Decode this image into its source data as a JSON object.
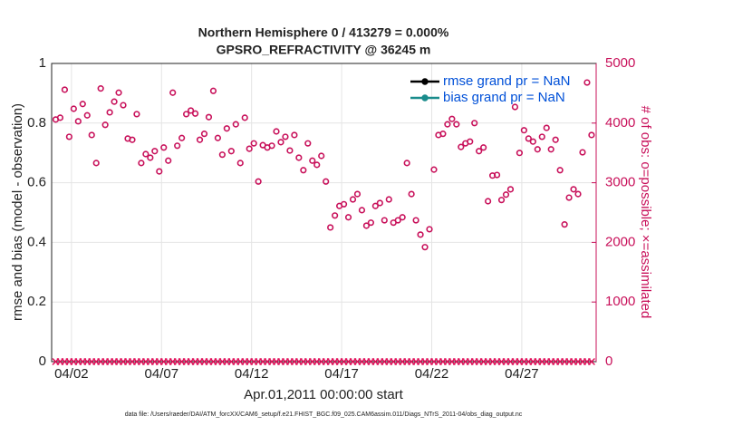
{
  "chart_data": {
    "type": "scatter",
    "title": [
      "Northern Hemisphere 0 / 413279 = 0.000%",
      "GPSRO_REFRACTIVITY @ 36245 m"
    ],
    "xlabel": "Apr.01,2011 00:00:00 start",
    "ylabel": "rmse and bias (model - observation)",
    "y2label": "# of obs: o=possible; ×=assimilated",
    "footer": "data file: /Users/raeder/DAI/ATM_forcXX/CAM6_setup/f.e21.FHIST_BGC.f09_025.CAM6assim.011/Diags_NTrS_2011-04/obs_diag_output.nc",
    "xlim": [
      -0.1,
      30.13
    ],
    "xticks": [
      {
        "value": 1,
        "label": "04/02"
      },
      {
        "value": 6,
        "label": "04/07"
      },
      {
        "value": 11,
        "label": "04/12"
      },
      {
        "value": 16,
        "label": "04/17"
      },
      {
        "value": 21,
        "label": "04/22"
      },
      {
        "value": 26,
        "label": "04/27"
      }
    ],
    "ylim": [
      0,
      1
    ],
    "yticks": [
      0,
      {
        "value": 0.2,
        "label": "0.2"
      },
      {
        "value": 0.4,
        "label": "0.4"
      },
      {
        "value": 0.6,
        "label": "0.6"
      },
      {
        "value": 0.8,
        "label": "0.8"
      },
      1
    ],
    "y2lim": [
      0,
      5000
    ],
    "y2ticks": [
      0,
      1000,
      2000,
      3000,
      4000,
      5000
    ],
    "y2color": "#c8105a",
    "grid": true,
    "legend": [
      {
        "name": "rmse grand pr = NaN",
        "color": "#000000"
      },
      {
        "name": "bias grand pr = NaN",
        "color": "#1a8c8c"
      }
    ],
    "legend_position": "upper right",
    "x": [
      0.125,
      0.375,
      0.625,
      0.875,
      1.125,
      1.375,
      1.625,
      1.875,
      2.125,
      2.375,
      2.625,
      2.875,
      3.125,
      3.375,
      3.625,
      3.875,
      4.125,
      4.375,
      4.625,
      4.875,
      5.125,
      5.375,
      5.625,
      5.875,
      6.125,
      6.375,
      6.625,
      6.875,
      7.125,
      7.375,
      7.625,
      7.875,
      8.125,
      8.375,
      8.625,
      8.875,
      9.125,
      9.375,
      9.625,
      9.875,
      10.125,
      10.375,
      10.625,
      10.875,
      11.125,
      11.375,
      11.625,
      11.875,
      12.125,
      12.375,
      12.625,
      12.875,
      13.125,
      13.375,
      13.625,
      13.875,
      14.125,
      14.375,
      14.625,
      14.875,
      15.125,
      15.375,
      15.625,
      15.875,
      16.125,
      16.375,
      16.625,
      16.875,
      17.125,
      17.375,
      17.625,
      17.875,
      18.125,
      18.375,
      18.625,
      18.875,
      19.125,
      19.375,
      19.625,
      19.875,
      20.125,
      20.375,
      20.625,
      20.875,
      21.125,
      21.375,
      21.625,
      21.875,
      22.125,
      22.375,
      22.625,
      22.875,
      23.125,
      23.375,
      23.625,
      23.875,
      24.125,
      24.375,
      24.625,
      24.875,
      25.125,
      25.375,
      25.625,
      25.875,
      26.125,
      26.375,
      26.625,
      26.875,
      27.125,
      27.375,
      27.625,
      27.875,
      28.125,
      28.375,
      28.625,
      28.875,
      29.125,
      29.375,
      29.625,
      29.875
    ],
    "series": [
      {
        "marker": "circle",
        "color": "#c8105a",
        "axis": "y2",
        "values": [
          4060,
          4090,
          4560,
          3770,
          4240,
          4030,
          4320,
          4130,
          3800,
          3330,
          4580,
          3970,
          4180,
          4360,
          4510,
          4300,
          3740,
          3720,
          4150,
          3330,
          3480,
          3420,
          3530,
          3190,
          3590,
          3370,
          4510,
          3620,
          3750,
          4150,
          4210,
          4160,
          3720,
          3820,
          4100,
          4540,
          3750,
          3470,
          3910,
          3530,
          3980,
          3330,
          4090,
          3570,
          3660,
          3020,
          3630,
          3590,
          3620,
          3860,
          3680,
          3770,
          3540,
          3800,
          3420,
          3210,
          3660,
          3370,
          3300,
          3450,
          3020,
          2250,
          2450,
          2610,
          2640,
          2420,
          2720,
          2810,
          2540,
          2280,
          2330,
          2610,
          2660,
          2370,
          2720,
          2330,
          2370,
          2420,
          3330,
          2810,
          2370,
          2130,
          1920,
          2220,
          3220,
          3800,
          3820,
          3980,
          4070,
          3980,
          3600,
          3660,
          3690,
          4000,
          3530,
          3590,
          2690,
          3120,
          3130,
          2710,
          2800,
          2890,
          4270,
          3500,
          3880,
          3740,
          3690,
          3560,
          3770,
          3920,
          3560,
          3720,
          3210,
          2300,
          2750,
          2890,
          2810,
          3510,
          4680,
          3800
        ]
      },
      {
        "marker": "x",
        "color": "#e0105a",
        "axis": "y2",
        "values": [
          0,
          0,
          0,
          0,
          0,
          0,
          0,
          0,
          0,
          0,
          0,
          0,
          0,
          0,
          0,
          0,
          0,
          0,
          0,
          0,
          0,
          0,
          0,
          0,
          0,
          0,
          0,
          0,
          0,
          0,
          0,
          0,
          0,
          0,
          0,
          0,
          0,
          0,
          0,
          0,
          0,
          0,
          0,
          0,
          0,
          0,
          0,
          0,
          0,
          0,
          0,
          0,
          0,
          0,
          0,
          0,
          0,
          0,
          0,
          0,
          0,
          0,
          0,
          0,
          0,
          0,
          0,
          0,
          0,
          0,
          0,
          0,
          0,
          0,
          0,
          0,
          0,
          0,
          0,
          0,
          0,
          0,
          0,
          0,
          0,
          0,
          0,
          0,
          0,
          0,
          0,
          0,
          0,
          0,
          0,
          0,
          0,
          0,
          0,
          0,
          0,
          0,
          0,
          0,
          0,
          0,
          0,
          0,
          0,
          0,
          0,
          0,
          0,
          0,
          0,
          0,
          0,
          0,
          0,
          0
        ]
      }
    ]
  }
}
